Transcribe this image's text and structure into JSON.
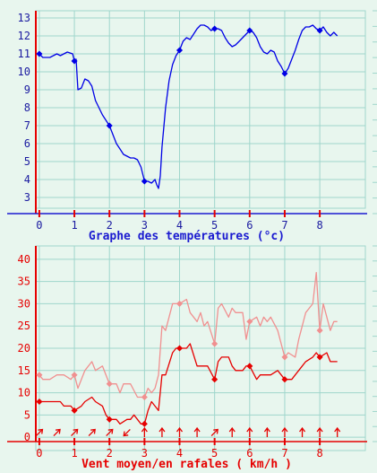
{
  "page": {
    "background": "#e8f6ee",
    "grid_color": "#9fd6cc"
  },
  "chart_data": [
    {
      "type": "line",
      "title": "",
      "xlabel": "Graphe des températures (°c)",
      "ylabel": "",
      "xlim": [
        -0.1,
        9.3
      ],
      "ylim": [
        2.4,
        13.4
      ],
      "x_ticks": [
        0,
        1,
        2,
        3,
        4,
        5,
        6,
        7,
        8
      ],
      "x_tick_labels": [
        "0",
        "1",
        "2",
        "3",
        "4",
        "5",
        "6",
        "7",
        "8"
      ],
      "y_ticks": [
        3,
        4,
        5,
        6,
        7,
        8,
        9,
        10,
        11,
        12,
        13
      ],
      "y_tick_labels": [
        "3",
        "4",
        "5",
        "6",
        "7",
        "8",
        "9",
        "10",
        "11",
        "12",
        "13"
      ],
      "grid": true,
      "colors": {
        "axis": "#e60000",
        "tick_labels": "#1a1aa0",
        "xlabel": "#1a1ad0",
        "baseline": "#1a1ad0"
      },
      "series": [
        {
          "name": "",
          "color": "#0000e6",
          "x": [
            0,
            0.1,
            0.3,
            0.5,
            0.6,
            0.8,
            0.95,
            1.0,
            1.05,
            1.1,
            1.2,
            1.3,
            1.4,
            1.5,
            1.6,
            1.7,
            1.8,
            1.9,
            2.0,
            2.1,
            2.2,
            2.3,
            2.4,
            2.5,
            2.6,
            2.7,
            2.8,
            2.9,
            3.0,
            3.1,
            3.2,
            3.3,
            3.35,
            3.4,
            3.45,
            3.5,
            3.6,
            3.7,
            3.8,
            3.9,
            4.0,
            4.1,
            4.2,
            4.3,
            4.4,
            4.5,
            4.6,
            4.7,
            4.8,
            4.9,
            5.0,
            5.1,
            5.2,
            5.3,
            5.4,
            5.5,
            5.6,
            5.7,
            5.8,
            5.9,
            6.0,
            6.1,
            6.2,
            6.3,
            6.4,
            6.5,
            6.6,
            6.7,
            6.8,
            6.9,
            7.0,
            7.1,
            7.2,
            7.3,
            7.4,
            7.5,
            7.6,
            7.7,
            7.8,
            7.9,
            8.0,
            8.1,
            8.2,
            8.3,
            8.4,
            8.5
          ],
          "y": [
            11.0,
            10.8,
            10.8,
            11.0,
            10.9,
            11.1,
            11.0,
            10.6,
            10.7,
            9.0,
            9.1,
            9.6,
            9.5,
            9.2,
            8.4,
            8.0,
            7.6,
            7.3,
            7.0,
            6.5,
            6.0,
            5.7,
            5.4,
            5.3,
            5.2,
            5.2,
            5.1,
            4.7,
            3.9,
            3.9,
            3.8,
            4.0,
            3.7,
            3.5,
            4.2,
            5.8,
            8.0,
            9.5,
            10.4,
            10.9,
            11.2,
            11.7,
            11.9,
            11.8,
            12.1,
            12.4,
            12.6,
            12.6,
            12.5,
            12.3,
            12.4,
            12.4,
            12.3,
            11.9,
            11.6,
            11.4,
            11.5,
            11.7,
            11.9,
            12.1,
            12.3,
            12.2,
            11.9,
            11.4,
            11.1,
            11.0,
            11.2,
            11.1,
            10.6,
            10.3,
            9.9,
            10.2,
            10.7,
            11.2,
            11.8,
            12.3,
            12.5,
            12.5,
            12.6,
            12.4,
            12.3,
            12.5,
            12.2,
            12.0,
            12.2,
            12.0
          ],
          "markers_x": [
            0,
            1,
            2,
            3,
            4,
            5,
            6,
            7,
            8
          ],
          "markers_y": [
            11.0,
            10.6,
            7.0,
            3.9,
            11.2,
            12.4,
            12.3,
            9.9,
            12.3
          ]
        }
      ]
    },
    {
      "type": "line",
      "title": "",
      "xlabel": "Vent moyen/en rafales ( km/h )",
      "ylabel": "",
      "xlim": [
        -0.1,
        9.3
      ],
      "ylim": [
        -3,
        43
      ],
      "x_ticks": [
        0,
        1,
        2,
        3,
        4,
        5,
        6,
        7,
        8
      ],
      "x_tick_labels": [
        "0",
        "1",
        "2",
        "3",
        "4",
        "5",
        "6",
        "7",
        "8"
      ],
      "y_ticks": [
        0,
        5,
        10,
        15,
        20,
        25,
        30,
        35,
        40
      ],
      "y_tick_labels": [
        "0",
        "5",
        "10",
        "15",
        "20",
        "25",
        "30",
        "35",
        "40"
      ],
      "grid": true,
      "colors": {
        "axis": "#e60000",
        "tick_labels": "#e60000",
        "xlabel": "#e60000",
        "baseline": "#e60000"
      },
      "series": [
        {
          "name": "",
          "color": "#f09090",
          "x": [
            0,
            0.1,
            0.3,
            0.5,
            0.7,
            0.9,
            1.0,
            1.1,
            1.3,
            1.5,
            1.6,
            1.8,
            1.9,
            2.0,
            2.2,
            2.3,
            2.4,
            2.6,
            2.8,
            2.9,
            3.0,
            3.1,
            3.2,
            3.3,
            3.4,
            3.5,
            3.6,
            3.7,
            3.8,
            4.0,
            4.2,
            4.3,
            4.5,
            4.6,
            4.7,
            4.8,
            5.0,
            5.1,
            5.2,
            5.4,
            5.5,
            5.6,
            5.8,
            5.9,
            6.0,
            6.2,
            6.3,
            6.4,
            6.5,
            6.6,
            6.8,
            6.9,
            7.0,
            7.1,
            7.3,
            7.4,
            7.5,
            7.6,
            7.8,
            7.9,
            8.0,
            8.1,
            8.3,
            8.4,
            8.5
          ],
          "y": [
            14,
            13,
            13,
            14,
            14,
            13,
            14,
            11,
            15,
            17,
            15,
            16,
            14,
            12,
            12,
            10,
            12,
            12,
            9,
            9,
            9,
            11,
            10,
            11,
            14,
            25,
            24,
            27,
            30,
            30,
            31,
            28,
            26,
            28,
            25,
            26,
            21,
            29,
            30,
            27,
            29,
            28,
            28,
            22,
            26,
            27,
            25,
            27,
            26,
            27,
            24,
            21,
            18,
            19,
            18,
            22,
            25,
            28,
            30,
            37,
            24,
            30,
            24,
            26,
            26
          ],
          "markers_x": [
            0,
            1,
            2,
            3,
            4,
            5,
            6,
            7,
            8
          ],
          "markers_y": [
            14,
            14,
            12,
            9,
            30,
            21,
            26,
            18,
            24
          ]
        },
        {
          "name": "",
          "color": "#e60000",
          "x": [
            0,
            0.2,
            0.4,
            0.6,
            0.7,
            0.9,
            1.0,
            1.2,
            1.3,
            1.5,
            1.6,
            1.8,
            1.9,
            2.0,
            2.2,
            2.3,
            2.5,
            2.6,
            2.7,
            2.8,
            2.9,
            3.0,
            3.1,
            3.2,
            3.4,
            3.5,
            3.6,
            3.8,
            3.9,
            4.0,
            4.2,
            4.3,
            4.5,
            4.6,
            4.8,
            5.0,
            5.1,
            5.2,
            5.4,
            5.5,
            5.6,
            5.8,
            5.9,
            6.0,
            6.2,
            6.3,
            6.5,
            6.6,
            6.8,
            7.0,
            7.2,
            7.3,
            7.5,
            7.6,
            7.8,
            7.9,
            8.0,
            8.2,
            8.3,
            8.4,
            8.5
          ],
          "y": [
            8,
            8,
            8,
            8,
            7,
            7,
            6,
            7,
            8,
            9,
            8,
            7,
            5,
            4,
            4,
            3,
            4,
            4,
            5,
            4,
            3,
            3,
            6,
            8,
            6,
            14,
            14,
            19,
            20,
            20,
            20,
            21,
            16,
            16,
            16,
            13,
            17,
            18,
            18,
            16,
            15,
            15,
            16,
            16,
            13,
            14,
            14,
            14,
            15,
            13,
            13,
            14,
            16,
            17,
            18,
            19,
            18,
            19,
            17,
            17,
            17
          ],
          "markers_x": [
            0,
            1,
            2,
            3,
            4,
            5,
            6,
            7,
            8
          ],
          "markers_y": [
            8,
            6,
            4,
            3,
            20,
            13,
            16,
            13,
            18
          ]
        }
      ],
      "wind_arrows": {
        "color": "#e60000",
        "x": [
          0,
          0.5,
          1,
          1.5,
          2,
          2.5,
          3,
          3.5,
          4,
          4.5,
          5,
          5.5,
          6,
          6.5,
          7,
          7.5,
          8,
          8.5
        ],
        "direction_deg": [
          45,
          45,
          45,
          45,
          45,
          225,
          0,
          0,
          0,
          0,
          45,
          0,
          0,
          0,
          0,
          0,
          0,
          0
        ]
      }
    }
  ]
}
